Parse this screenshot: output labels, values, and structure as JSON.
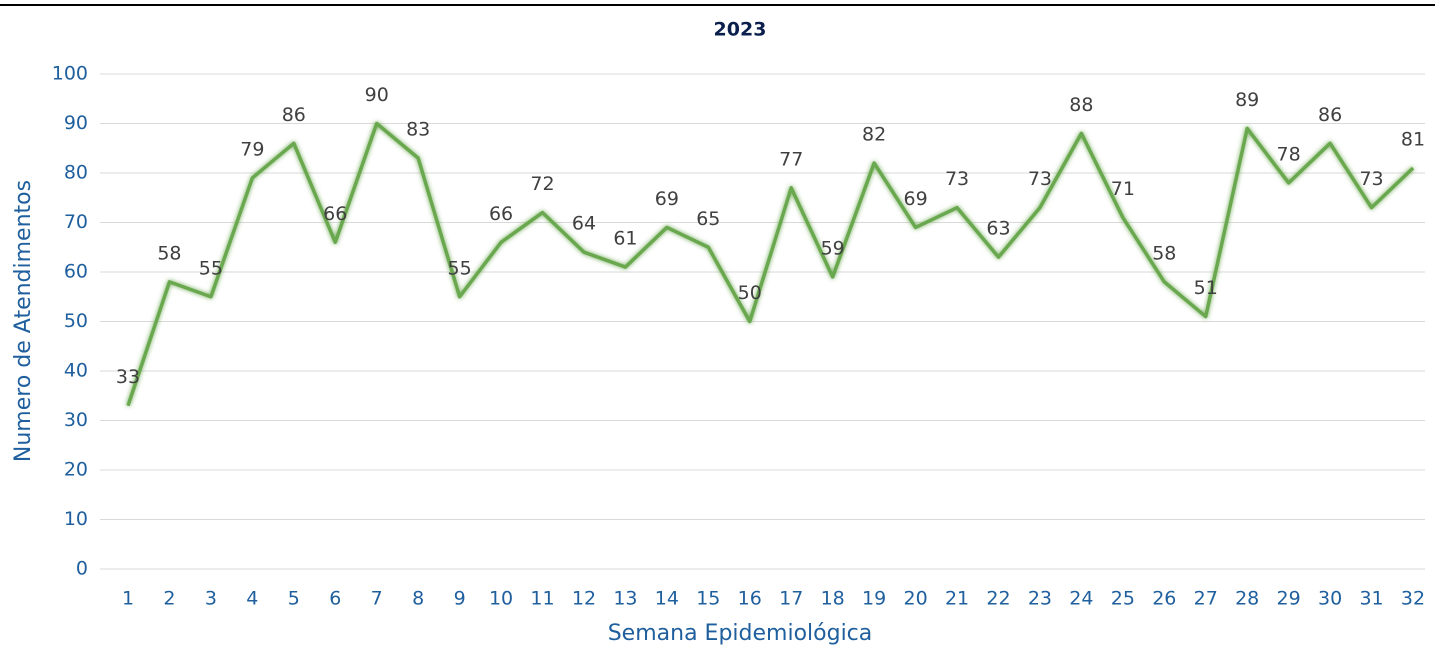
{
  "chart_data": {
    "type": "line",
    "title": "2023",
    "x_label": "Semana Epidemiológica",
    "y_label": "Numero de Atendimentos",
    "categories": [
      "1",
      "2",
      "3",
      "4",
      "5",
      "6",
      "7",
      "8",
      "9",
      "10",
      "11",
      "12",
      "13",
      "14",
      "15",
      "16",
      "17",
      "18",
      "19",
      "20",
      "21",
      "22",
      "23",
      "24",
      "25",
      "26",
      "27",
      "28",
      "29",
      "30",
      "31",
      "32"
    ],
    "series": [
      {
        "name": "Atendimentos",
        "color": "#6aa84f",
        "values": [
          33,
          58,
          55,
          79,
          86,
          66,
          90,
          83,
          55,
          66,
          72,
          64,
          61,
          69,
          65,
          50,
          77,
          59,
          82,
          69,
          73,
          63,
          73,
          88,
          71,
          58,
          51,
          89,
          78,
          86,
          73,
          81
        ]
      }
    ],
    "ylim": [
      0,
      100
    ],
    "yticks": [
      0,
      10,
      20,
      30,
      40,
      50,
      60,
      70,
      80,
      90,
      100
    ],
    "grid": true
  }
}
